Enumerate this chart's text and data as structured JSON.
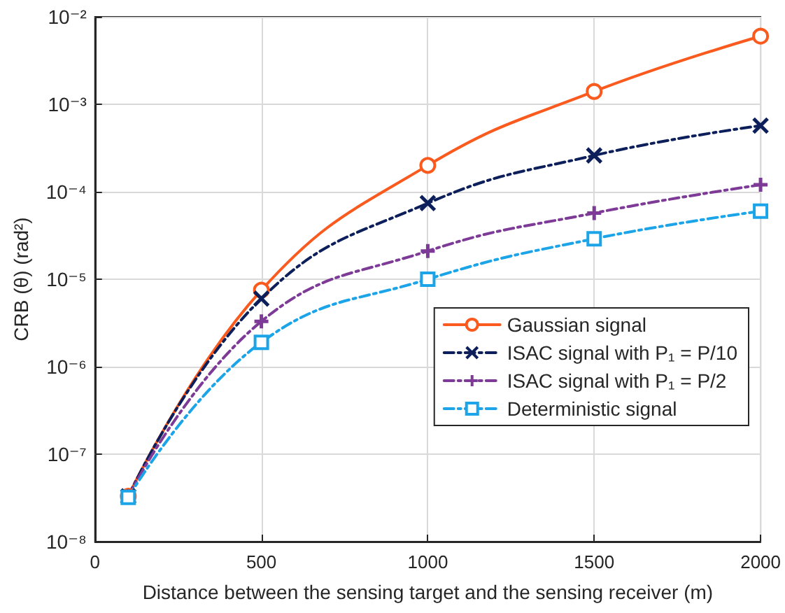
{
  "chart_data": {
    "type": "line",
    "xlabel": "Distance between the sensing target and the sensing receiver (m)",
    "ylabel": "CRB (θ) (rad²)",
    "x": [
      100,
      500,
      1000,
      1500,
      2000
    ],
    "series": [
      {
        "name": "Gaussian signal",
        "color": "#fa5a1e",
        "values": [
          3.3e-08,
          7.5e-06,
          0.0002,
          0.0014,
          0.006
        ],
        "marker": "circle",
        "line_style": "solid"
      },
      {
        "name": "ISAC signal with P₁ = P/10",
        "color": "#0c1f5a",
        "values": [
          3.3e-08,
          6e-06,
          7.4e-05,
          0.00026,
          0.00057
        ],
        "marker": "x",
        "line_style": "dashed"
      },
      {
        "name": "ISAC signal with P₁ = P/2",
        "color": "#7d3a96",
        "values": [
          3.3e-08,
          3.3e-06,
          2.1e-05,
          5.7e-05,
          0.00012
        ],
        "marker": "plus",
        "line_style": "dashed"
      },
      {
        "name": "Deterministic signal",
        "color": "#1ba4e8",
        "values": [
          3.2e-08,
          1.9e-06,
          1e-05,
          2.9e-05,
          6e-05
        ],
        "marker": "square",
        "line_style": "dashed"
      }
    ],
    "xlim": [
      0,
      2000
    ],
    "xticks": [
      0,
      500,
      1000,
      1500,
      2000
    ],
    "ylim": [
      1e-08,
      0.01
    ],
    "log": "y",
    "yticks": [
      {
        "value": 1e-08,
        "label": "10⁻⁸"
      },
      {
        "value": 1e-07,
        "label": "10⁻⁷"
      },
      {
        "value": 1e-06,
        "label": "10⁻⁶"
      },
      {
        "value": 1e-05,
        "label": "10⁻⁵"
      },
      {
        "value": 0.0001,
        "label": "10⁻⁴"
      },
      {
        "value": 0.001,
        "label": "10⁻³"
      },
      {
        "value": 0.01,
        "label": "10⁻²"
      }
    ],
    "grid": true,
    "legend": "right"
  }
}
